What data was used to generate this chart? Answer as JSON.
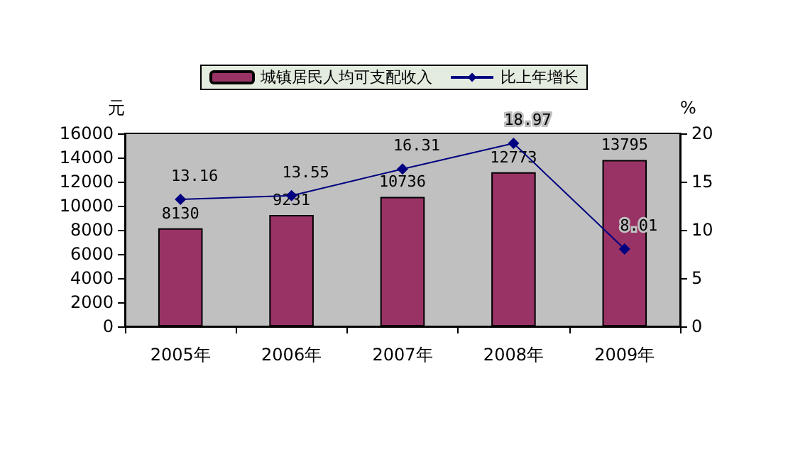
{
  "chart_data": {
    "type": "bar",
    "categories": [
      "2005年",
      "2006年",
      "2007年",
      "2008年",
      "2009年"
    ],
    "ylabel": "元",
    "y2label": "%",
    "series": [
      {
        "name": "城镇居民人均可支配收入",
        "color": "#993366",
        "values": [
          8130,
          9231,
          10736,
          12773,
          13795
        ]
      },
      {
        "name": "比上年增长",
        "type": "line",
        "axis": "y2",
        "color": "#000080",
        "marker": "diamond",
        "values": [
          13.16,
          13.55,
          16.31,
          18.97,
          8.01
        ]
      }
    ],
    "ylim": [
      0,
      16000
    ],
    "yticks": [
      0,
      2000,
      4000,
      6000,
      8000,
      10000,
      12000,
      14000,
      16000
    ],
    "y2lim": [
      0,
      20
    ],
    "y2ticks": [
      0,
      5,
      10,
      15,
      20
    ],
    "data_labels": true,
    "grid": false,
    "legend": "top"
  }
}
